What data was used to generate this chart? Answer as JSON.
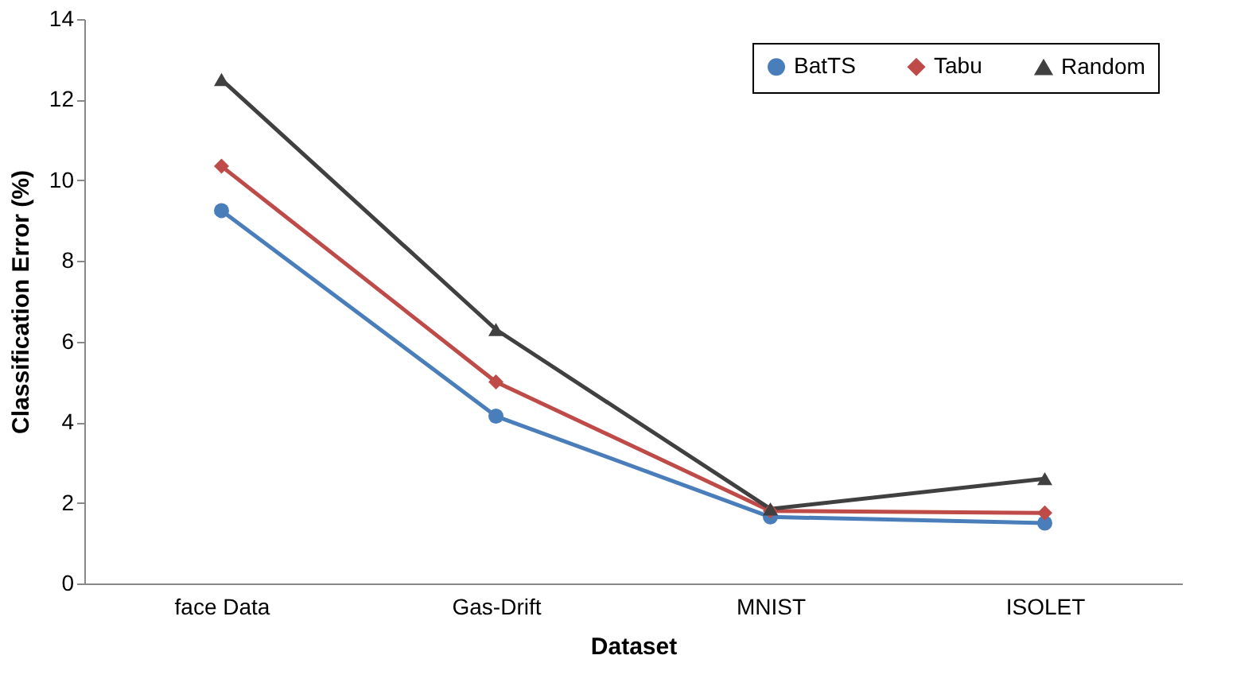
{
  "chart_data": {
    "type": "line",
    "xlabel": "Dataset",
    "ylabel": "Classification Error (%)",
    "categories": [
      "face Data",
      "Gas-Drift",
      "MNIST",
      "ISOLET"
    ],
    "series": [
      {
        "name": "BatTS",
        "color": "#4a7ebb",
        "marker": "circle",
        "values": [
          9.25,
          4.15,
          1.65,
          1.5
        ]
      },
      {
        "name": "Tabu",
        "color": "#be4b48",
        "marker": "diamond",
        "values": [
          10.35,
          5.0,
          1.8,
          1.75
        ]
      },
      {
        "name": "Random",
        "color": "#404040",
        "marker": "triangle",
        "values": [
          12.5,
          6.3,
          1.85,
          2.6
        ]
      }
    ],
    "ylim": [
      0,
      14
    ],
    "yticks": [
      0,
      2,
      4,
      6,
      8,
      10,
      12,
      14
    ],
    "grid": false,
    "legend": "top right",
    "line_style": "solid"
  }
}
